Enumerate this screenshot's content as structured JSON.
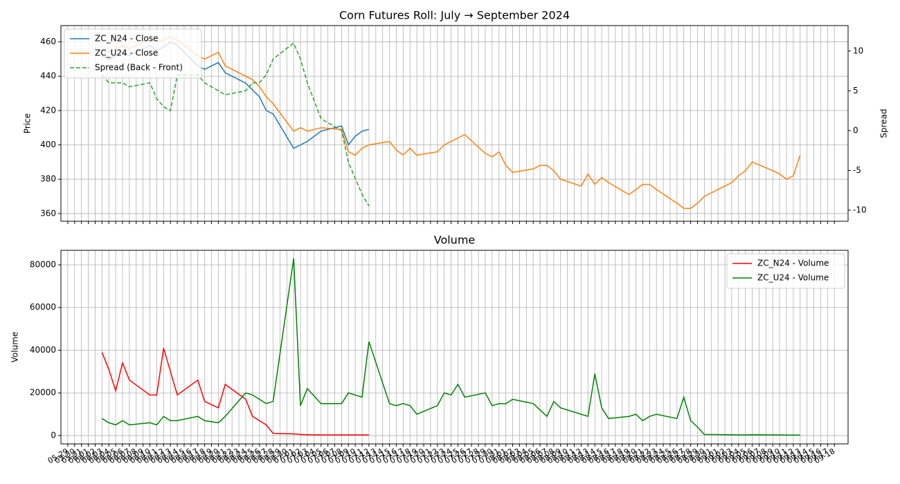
{
  "chart_data": [
    {
      "type": "line",
      "title": "Corn Futures Roll: July → September 2024",
      "ylabel": "Price",
      "y2label": "Spread",
      "grid": true,
      "legend": "upper left",
      "xlim": [
        "05-28",
        "09-20"
      ],
      "ylim": [
        355.5,
        469.5
      ],
      "yticks": [
        360,
        380,
        400,
        420,
        440,
        460
      ],
      "y2lim": [
        -11.4,
        13.2
      ],
      "y2ticks": [
        -10,
        -5,
        0,
        5,
        10
      ],
      "x": [
        "06-03",
        "06-04",
        "06-05",
        "06-06",
        "06-07",
        "06-10",
        "06-11",
        "06-12",
        "06-13",
        "06-14",
        "06-17",
        "06-18",
        "06-20",
        "06-21",
        "06-24",
        "06-25",
        "06-26",
        "06-27",
        "06-28",
        "07-01",
        "07-02",
        "07-03",
        "07-05",
        "07-08",
        "07-09",
        "07-10",
        "07-11",
        "07-12",
        "07-15",
        "07-16",
        "07-17",
        "07-18",
        "07-19",
        "07-22",
        "07-23",
        "07-24",
        "07-25",
        "07-26",
        "07-29",
        "07-30",
        "07-31",
        "08-01",
        "08-02",
        "08-05",
        "08-06",
        "08-07",
        "08-08",
        "08-09",
        "08-12",
        "08-13",
        "08-14",
        "08-15",
        "08-16",
        "08-19",
        "08-20",
        "08-21",
        "08-22",
        "08-23",
        "08-26",
        "08-27",
        "08-28",
        "08-29",
        "08-30",
        "09-03",
        "09-04",
        "09-05",
        "09-06",
        "09-09",
        "09-10",
        "09-11",
        "09-12",
        "09-13"
      ],
      "series": [
        {
          "name": "ZC_N24 - Close",
          "color": "#1f77b4",
          "linestyle": "solid",
          "values": [
            452,
            450,
            452,
            454,
            452,
            458,
            455,
            457,
            460,
            458,
            446,
            444,
            448,
            442,
            436,
            432,
            428,
            420,
            418,
            398,
            400,
            402,
            408,
            411,
            400,
            405,
            408,
            409,
            null,
            null,
            null,
            null,
            null,
            null,
            null,
            null,
            null,
            null,
            null,
            null,
            null,
            null,
            null,
            null,
            null,
            null,
            null,
            null,
            null,
            null,
            null,
            null,
            null,
            null,
            null,
            null,
            null,
            null,
            null,
            null,
            null,
            null,
            null,
            null,
            null,
            null,
            null,
            null,
            null,
            null,
            null,
            null
          ]
        },
        {
          "name": "ZC_U24 - Close",
          "color": "#ff7f0e",
          "linestyle": "solid",
          "values": [
            455,
            454,
            456,
            458,
            456,
            462,
            460,
            461,
            463,
            461,
            452,
            450,
            454,
            446,
            440,
            438,
            434,
            428,
            424,
            408,
            410,
            408,
            410,
            409,
            396,
            394,
            398,
            400,
            402,
            397,
            394,
            398,
            394,
            396,
            400,
            402,
            404,
            406,
            395,
            393,
            396,
            388,
            384,
            386,
            388,
            388,
            385,
            380,
            376,
            383,
            377,
            381,
            378,
            371,
            374,
            377,
            377,
            374,
            366,
            363,
            363,
            366,
            370,
            378,
            382,
            385,
            390,
            385,
            383,
            380,
            382,
            394
          ]
        },
        {
          "name": "Spread (Back - Front)",
          "color": "#2ca02c",
          "linestyle": "dashed",
          "axis": "y2",
          "values": [
            7,
            6,
            6,
            6,
            5.5,
            6,
            4,
            3,
            2.5,
            7,
            7,
            6,
            5,
            4.5,
            5,
            6,
            6,
            7,
            9,
            11,
            9,
            6,
            1.5,
            0,
            -4,
            -6,
            -8,
            -9.5,
            null,
            null,
            null,
            null,
            null,
            null,
            null,
            null,
            null,
            null,
            null,
            null,
            null,
            null,
            null,
            null,
            null,
            null,
            null,
            null,
            null,
            null,
            null,
            null,
            null,
            null,
            null,
            null,
            null,
            null,
            null,
            null,
            null,
            null,
            null,
            null,
            null,
            null,
            null,
            null,
            null,
            null,
            null,
            null
          ]
        }
      ]
    },
    {
      "type": "line",
      "title": "Volume",
      "ylabel": "Volume",
      "grid": true,
      "legend": "upper right",
      "xlim": [
        "05-28",
        "09-20"
      ],
      "ylim": [
        -3900,
        86800
      ],
      "yticks": [
        0,
        20000,
        40000,
        60000,
        80000
      ],
      "xticks": [
        "05-29",
        "05-30",
        "05-31",
        "06-01",
        "06-02",
        "06-03",
        "06-04",
        "06-05",
        "06-06",
        "06-07",
        "06-08",
        "06-09",
        "06-10",
        "06-11",
        "06-12",
        "06-13",
        "06-14",
        "06-15",
        "06-16",
        "06-17",
        "06-18",
        "06-19",
        "06-20",
        "06-21",
        "06-22",
        "06-23",
        "06-24",
        "06-25",
        "06-26",
        "06-27",
        "06-28",
        "06-29",
        "06-30",
        "07-01",
        "07-02",
        "07-03",
        "07-04",
        "07-05",
        "07-06",
        "07-07",
        "07-08",
        "07-09",
        "07-10",
        "07-11",
        "07-12",
        "07-13",
        "07-14",
        "07-15",
        "07-16",
        "07-17",
        "07-18",
        "07-19",
        "07-20",
        "07-21",
        "07-22",
        "07-23",
        "07-24",
        "07-25",
        "07-26",
        "07-27",
        "07-28",
        "07-29",
        "07-30",
        "07-31",
        "08-01",
        "08-02",
        "08-03",
        "08-04",
        "08-05",
        "08-06",
        "08-07",
        "08-08",
        "08-09",
        "08-10",
        "08-11",
        "08-12",
        "08-13",
        "08-14",
        "08-15",
        "08-16",
        "08-17",
        "08-18",
        "08-19",
        "08-20",
        "08-21",
        "08-22",
        "08-23",
        "08-24",
        "08-25",
        "08-26",
        "08-27",
        "08-28",
        "08-29",
        "08-30",
        "08-31",
        "09-01",
        "09-02",
        "09-03",
        "09-04",
        "09-05",
        "09-06",
        "09-07",
        "09-08",
        "09-09",
        "09-10",
        "09-11",
        "09-12",
        "09-13",
        "09-14",
        "09-15",
        "09-16",
        "09-17",
        "09-18"
      ],
      "x": [
        "06-03",
        "06-04",
        "06-05",
        "06-06",
        "06-07",
        "06-10",
        "06-11",
        "06-12",
        "06-13",
        "06-14",
        "06-17",
        "06-18",
        "06-20",
        "06-21",
        "06-24",
        "06-25",
        "06-26",
        "06-27",
        "06-28",
        "07-01",
        "07-02",
        "07-03",
        "07-05",
        "07-08",
        "07-09",
        "07-10",
        "07-11",
        "07-12",
        "07-15",
        "07-16",
        "07-17",
        "07-18",
        "07-19",
        "07-22",
        "07-23",
        "07-24",
        "07-25",
        "07-26",
        "07-29",
        "07-30",
        "07-31",
        "08-01",
        "08-02",
        "08-05",
        "08-06",
        "08-07",
        "08-08",
        "08-09",
        "08-12",
        "08-13",
        "08-14",
        "08-15",
        "08-16",
        "08-19",
        "08-20",
        "08-21",
        "08-22",
        "08-23",
        "08-26",
        "08-27",
        "08-28",
        "08-29",
        "08-30",
        "09-03",
        "09-04",
        "09-05",
        "09-06",
        "09-09",
        "09-10",
        "09-11",
        "09-12",
        "09-13"
      ],
      "series": [
        {
          "name": "ZC_N24 - Volume",
          "color": "#ff0000",
          "linestyle": "solid",
          "values": [
            39000,
            31000,
            21000,
            34000,
            26000,
            19000,
            19000,
            41000,
            30000,
            19000,
            26000,
            16000,
            13000,
            24000,
            17000,
            9000,
            7000,
            5000,
            1000,
            800,
            500,
            400,
            300,
            300,
            300,
            300,
            300,
            300,
            null,
            null,
            null,
            null,
            null,
            null,
            null,
            null,
            null,
            null,
            null,
            null,
            null,
            null,
            null,
            null,
            null,
            null,
            null,
            null,
            null,
            null,
            null,
            null,
            null,
            null,
            null,
            null,
            null,
            null,
            null,
            null,
            null,
            null,
            null,
            null,
            null,
            null,
            null,
            null,
            null,
            null,
            null,
            null
          ]
        },
        {
          "name": "ZC_U24 - Volume",
          "color": "#008000",
          "linestyle": "solid",
          "values": [
            8000,
            6000,
            5000,
            7000,
            5000,
            6000,
            5000,
            9000,
            7000,
            7000,
            9000,
            7000,
            6000,
            9000,
            20000,
            19000,
            17000,
            15000,
            16000,
            83000,
            14000,
            22000,
            15000,
            15000,
            20000,
            19000,
            18000,
            44000,
            15000,
            14000,
            15000,
            14000,
            10000,
            14000,
            20000,
            19000,
            24000,
            18000,
            20000,
            14000,
            15000,
            15000,
            17000,
            15000,
            12000,
            9000,
            16000,
            13000,
            10000,
            9000,
            29000,
            13000,
            8000,
            9000,
            10000,
            7000,
            9000,
            10000,
            8000,
            18000,
            7000,
            4000,
            500,
            400,
            300,
            300,
            400,
            300,
            300,
            200,
            200,
            200
          ]
        }
      ]
    }
  ]
}
